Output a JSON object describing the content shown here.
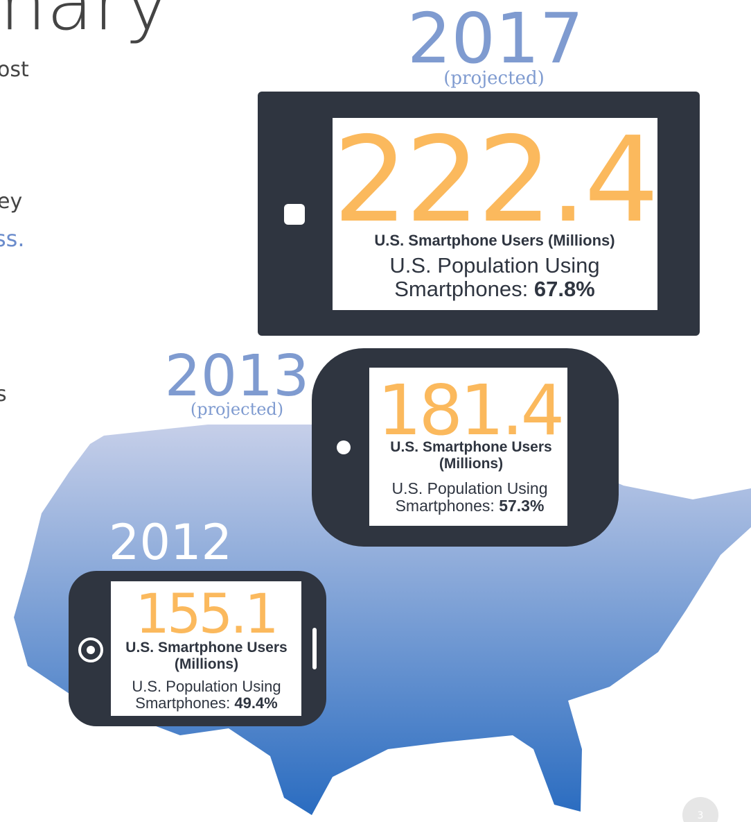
{
  "header": {
    "title": "mary",
    "fragments": [
      "ost",
      "ey",
      "ss.",
      "s"
    ]
  },
  "phones": [
    {
      "year": "2017",
      "note": "(projected)",
      "value": "222.4",
      "label": [
        "U.S. Smartphone Users (Millions)"
      ],
      "population": [
        "U.S. Population Using",
        "Smartphones: "
      ],
      "percent": "67.8%"
    },
    {
      "year": "2013",
      "note": "(projected)",
      "value": "181.4",
      "label": [
        "U.S. Smartphone Users",
        "(Millions)"
      ],
      "population": [
        "U.S. Population Using",
        "Smartphones: "
      ],
      "percent": "57.3%"
    },
    {
      "year": "2012",
      "value": "155.1",
      "label": [
        "U.S. Smartphone Users",
        "(Millions)"
      ],
      "population": [
        "U.S. Population Using",
        "Smartphones: "
      ],
      "percent": "49.4%"
    }
  ],
  "page_number": "3"
}
